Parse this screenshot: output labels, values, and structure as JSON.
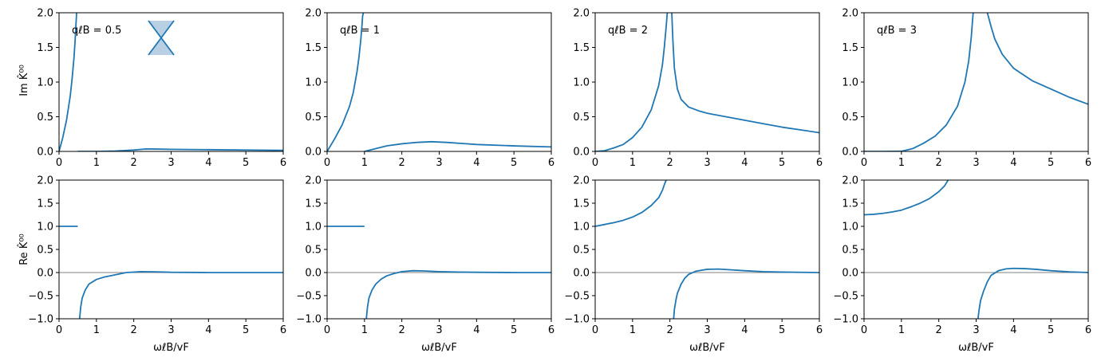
{
  "figure": {
    "row_labels": [
      "Im K̂⁰⁰",
      "Re K̂⁰⁰"
    ],
    "xlabel": "ωℓB/vF",
    "line_color": "#1f77b4",
    "fill_color": "#b8cfe4",
    "zero_line_color": "#808080"
  },
  "chart_data": [
    {
      "type": "line",
      "panel_label": "qℓB = 0.5",
      "row": "Im",
      "xlim": [
        0,
        6
      ],
      "ylim": [
        0,
        2
      ],
      "xticks": [
        "0",
        "1",
        "2",
        "3",
        "4",
        "5",
        "6"
      ],
      "yticks": [
        "0.0",
        "0.5",
        "1.0",
        "1.5",
        "2.0"
      ],
      "series": [
        {
          "x": [
            0,
            0.1,
            0.2,
            0.3,
            0.35,
            0.4,
            0.43,
            0.45,
            0.47
          ],
          "y": [
            0,
            0.2,
            0.45,
            0.8,
            1.05,
            1.35,
            1.6,
            1.8,
            2.0
          ]
        },
        {
          "x": [
            0.5,
            1.0,
            1.5,
            2.0,
            2.3,
            2.5,
            3.0,
            3.5,
            4.0,
            5.0,
            6.0
          ],
          "y": [
            0,
            0,
            0.005,
            0.02,
            0.035,
            0.035,
            0.03,
            0.027,
            0.025,
            0.02,
            0.015
          ]
        }
      ]
    },
    {
      "type": "line",
      "panel_label": "qℓB = 1",
      "row": "Im",
      "xlim": [
        0,
        6
      ],
      "ylim": [
        0,
        2
      ],
      "xticks": [
        "0",
        "1",
        "2",
        "3",
        "4",
        "5",
        "6"
      ],
      "yticks": [
        "0.0",
        "0.5",
        "1.0",
        "1.5",
        "2.0"
      ],
      "series": [
        {
          "x": [
            0,
            0.2,
            0.4,
            0.6,
            0.7,
            0.8,
            0.85,
            0.9,
            0.93,
            0.95,
            0.97
          ],
          "y": [
            0,
            0.18,
            0.38,
            0.65,
            0.85,
            1.15,
            1.35,
            1.6,
            1.8,
            1.95,
            2.0
          ]
        },
        {
          "x": [
            1.0,
            1.3,
            1.6,
            2.0,
            2.4,
            2.8,
            3.2,
            3.6,
            4.0,
            5.0,
            6.0
          ],
          "y": [
            0,
            0.04,
            0.08,
            0.11,
            0.13,
            0.14,
            0.13,
            0.115,
            0.1,
            0.08,
            0.065
          ]
        }
      ]
    },
    {
      "type": "line",
      "panel_label": "qℓB = 2",
      "row": "Im",
      "xlim": [
        0,
        6
      ],
      "ylim": [
        0,
        2
      ],
      "xticks": [
        "0",
        "1",
        "2",
        "3",
        "4",
        "5",
        "6"
      ],
      "yticks": [
        "0.0",
        "0.5",
        "1.0",
        "1.5",
        "2.0"
      ],
      "series": [
        {
          "x": [
            0,
            0.25,
            0.5,
            0.75,
            1.0,
            1.25,
            1.5,
            1.7,
            1.8,
            1.85,
            1.9,
            1.93
          ],
          "y": [
            0,
            0.01,
            0.05,
            0.1,
            0.2,
            0.35,
            0.6,
            0.95,
            1.25,
            1.5,
            1.8,
            2.0
          ]
        },
        {
          "x": [
            2.05,
            2.08,
            2.12,
            2.2,
            2.3,
            2.5,
            2.8,
            3.0,
            3.5,
            4.0,
            4.5,
            5.0,
            5.5,
            6.0
          ],
          "y": [
            2.0,
            1.6,
            1.2,
            0.9,
            0.75,
            0.64,
            0.58,
            0.55,
            0.5,
            0.45,
            0.4,
            0.35,
            0.31,
            0.27
          ]
        }
      ]
    },
    {
      "type": "line",
      "panel_label": "qℓB = 3",
      "row": "Im",
      "xlim": [
        0,
        6
      ],
      "ylim": [
        0,
        2
      ],
      "xticks": [
        "0",
        "1",
        "2",
        "3",
        "4",
        "5",
        "6"
      ],
      "yticks": [
        "0.0",
        "0.5",
        "1.0",
        "1.5",
        "2.0"
      ],
      "series": [
        {
          "x": [
            0,
            0.5,
            1.0,
            1.3,
            1.6,
            1.9,
            2.2,
            2.5,
            2.7,
            2.8,
            2.87,
            2.92
          ],
          "y": [
            0,
            0,
            0.002,
            0.04,
            0.12,
            0.22,
            0.38,
            0.65,
            1.0,
            1.3,
            1.65,
            2.0
          ]
        },
        {
          "x": [
            3.3,
            3.4,
            3.5,
            3.7,
            4.0,
            4.5,
            5.0,
            5.5,
            6.0
          ],
          "y": [
            2.0,
            1.8,
            1.62,
            1.4,
            1.2,
            1.02,
            0.9,
            0.78,
            0.68
          ]
        }
      ]
    },
    {
      "type": "line",
      "row": "Re",
      "xlim": [
        0,
        6
      ],
      "ylim": [
        -1,
        2
      ],
      "xticks": [
        "0",
        "1",
        "2",
        "3",
        "4",
        "5",
        "6"
      ],
      "yticks": [
        "−1.0",
        "−0.5",
        "0.0",
        "0.5",
        "1.0",
        "1.5",
        "2.0"
      ],
      "series": [
        {
          "x": [
            0,
            0.5
          ],
          "y": [
            1.0,
            1.0
          ]
        },
        {
          "x": [
            0.55,
            0.58,
            0.62,
            0.7,
            0.8,
            1.0,
            1.2,
            1.5,
            1.8,
            2.2,
            2.6,
            3.0,
            4.0,
            5.0,
            6.0
          ],
          "y": [
            -1.0,
            -0.75,
            -0.55,
            -0.38,
            -0.25,
            -0.15,
            -0.1,
            -0.05,
            0.0,
            0.02,
            0.015,
            0.005,
            0.0,
            0.0,
            0.0
          ]
        }
      ]
    },
    {
      "type": "line",
      "row": "Re",
      "xlim": [
        0,
        6
      ],
      "ylim": [
        -1,
        2
      ],
      "xticks": [
        "0",
        "1",
        "2",
        "3",
        "4",
        "5",
        "6"
      ],
      "yticks": [
        "−1.0",
        "−0.5",
        "0.0",
        "0.5",
        "1.0",
        "1.5",
        "2.0"
      ],
      "series": [
        {
          "x": [
            0,
            1.0
          ],
          "y": [
            1.0,
            1.0
          ]
        },
        {
          "x": [
            1.05,
            1.08,
            1.12,
            1.2,
            1.3,
            1.45,
            1.6,
            1.8,
            2.0,
            2.3,
            2.6,
            3.0,
            3.5,
            4.0,
            5.0,
            6.0
          ],
          "y": [
            -1.0,
            -0.75,
            -0.55,
            -0.38,
            -0.25,
            -0.14,
            -0.07,
            -0.02,
            0.02,
            0.04,
            0.035,
            0.02,
            0.01,
            0.005,
            0.0,
            0.0
          ]
        }
      ]
    },
    {
      "type": "line",
      "row": "Re",
      "xlim": [
        0,
        6
      ],
      "ylim": [
        -1,
        2
      ],
      "xticks": [
        "0",
        "1",
        "2",
        "3",
        "4",
        "5",
        "6"
      ],
      "yticks": [
        "−1.0",
        "−0.5",
        "0.0",
        "0.5",
        "1.0",
        "1.5",
        "2.0"
      ],
      "series": [
        {
          "x": [
            0,
            0.25,
            0.5,
            0.75,
            1.0,
            1.25,
            1.5,
            1.7,
            1.8,
            1.85,
            1.9
          ],
          "y": [
            1.0,
            1.04,
            1.08,
            1.13,
            1.2,
            1.3,
            1.45,
            1.62,
            1.78,
            1.9,
            2.0
          ]
        },
        {
          "x": [
            2.1,
            2.12,
            2.16,
            2.2,
            2.3,
            2.4,
            2.5,
            2.7,
            3.0,
            3.3,
            3.6,
            4.0,
            4.5,
            5.0,
            6.0
          ],
          "y": [
            -1.0,
            -0.8,
            -0.6,
            -0.45,
            -0.25,
            -0.12,
            -0.04,
            0.03,
            0.07,
            0.075,
            0.06,
            0.04,
            0.02,
            0.01,
            0.0
          ]
        }
      ]
    },
    {
      "type": "line",
      "row": "Re",
      "xlim": [
        0,
        6
      ],
      "ylim": [
        -1,
        2
      ],
      "xticks": [
        "0",
        "1",
        "2",
        "3",
        "4",
        "5",
        "6"
      ],
      "yticks": [
        "−1.0",
        "−0.5",
        "0.0",
        "0.5",
        "1.0",
        "1.5",
        "2.0"
      ],
      "series": [
        {
          "x": [
            0,
            0.25,
            0.5,
            0.75,
            1.0,
            1.25,
            1.5,
            1.75,
            2.0,
            2.15,
            2.25
          ],
          "y": [
            1.25,
            1.26,
            1.28,
            1.31,
            1.35,
            1.42,
            1.5,
            1.6,
            1.75,
            1.87,
            2.0
          ]
        },
        {
          "x": [
            3.05,
            3.08,
            3.12,
            3.2,
            3.3,
            3.4,
            3.6,
            3.8,
            4.0,
            4.3,
            4.6,
            5.0,
            5.5,
            6.0
          ],
          "y": [
            -1.0,
            -0.8,
            -0.6,
            -0.4,
            -0.2,
            -0.06,
            0.04,
            0.08,
            0.09,
            0.085,
            0.07,
            0.04,
            0.015,
            0.0
          ]
        }
      ]
    }
  ]
}
